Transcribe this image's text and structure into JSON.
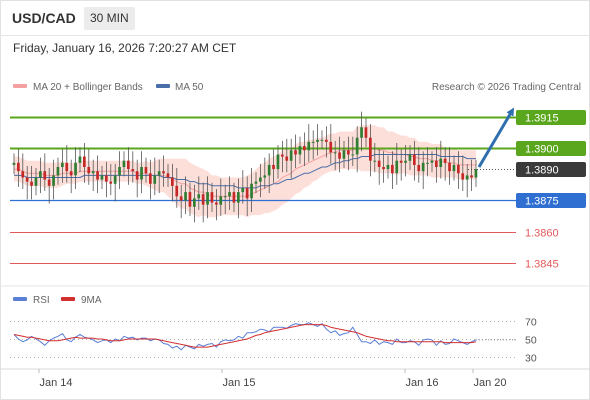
{
  "header": {
    "symbol": "USD/CAD",
    "timeframe": "30 MIN",
    "datetime": "Friday, January 16, 2026 7:20:27 AM CET"
  },
  "legend": {
    "bollinger": "MA 20 + Bollinger Bands",
    "ma50": "MA 50",
    "copyright": "Research © 2026 Trading Central",
    "rsi": "RSI",
    "rsi_ma": "9MA"
  },
  "colors": {
    "resistance": "#5aa61c",
    "support": "#2f6fd1",
    "support_weak": "#e05a5a",
    "current": "#3a3a3a",
    "bollinger_fill": "#fdd9d4",
    "ma20": "#f4a0a0",
    "ma50": "#4a6ea8",
    "candle_up": "#2e7d32",
    "candle_down": "#c62828",
    "arrow": "#2f6fb0",
    "rsi": "#5b7fd6",
    "rsi_ma": "#d32f2f"
  },
  "chart_data": {
    "type": "candlestick",
    "instrument": "USD/CAD",
    "interval": "30 MIN",
    "ylim": [
      1.3836,
      1.3924
    ],
    "levels": [
      {
        "value": 1.3915,
        "label": "1.3915",
        "kind": "resistance"
      },
      {
        "value": 1.39,
        "label": "1.3900",
        "kind": "resistance"
      },
      {
        "value": 1.389,
        "label": "1.3890",
        "kind": "current"
      },
      {
        "value": 1.3875,
        "label": "1.3875",
        "kind": "support"
      },
      {
        "value": 1.386,
        "label": "1.3860",
        "kind": "support_weak"
      },
      {
        "value": 1.3845,
        "label": "1.3845",
        "kind": "support_weak"
      }
    ],
    "forecast_target": 1.3915,
    "x_ticks": [
      "Jan 14",
      "Jan 15",
      "Jan 16",
      "Jan 20"
    ],
    "closes": [
      1.3893,
      1.3889,
      1.3886,
      1.3884,
      1.3882,
      1.3886,
      1.3889,
      1.3885,
      1.3882,
      1.3887,
      1.3891,
      1.3893,
      1.3889,
      1.3887,
      1.3893,
      1.3896,
      1.3891,
      1.3888,
      1.3889,
      1.3885,
      1.3887,
      1.3884,
      1.3883,
      1.3887,
      1.3891,
      1.3894,
      1.389,
      1.3889,
      1.3885,
      1.3891,
      1.3888,
      1.3883,
      1.3887,
      1.3889,
      1.3888,
      1.3886,
      1.3882,
      1.3877,
      1.3875,
      1.3879,
      1.3872,
      1.3876,
      1.3878,
      1.3873,
      1.3879,
      1.3874,
      1.3873,
      1.3877,
      1.3877,
      1.3879,
      1.3874,
      1.3879,
      1.3881,
      1.3876,
      1.3883,
      1.3884,
      1.3886,
      1.3887,
      1.3892,
      1.389,
      1.3897,
      1.3896,
      1.3894,
      1.3899,
      1.3897,
      1.3901,
      1.3899,
      1.3903,
      1.3903,
      1.3904,
      1.3904,
      1.3903,
      1.3898,
      1.3898,
      1.3895,
      1.3899,
      1.3897,
      1.3897,
      1.3905,
      1.391,
      1.3905,
      1.3894,
      1.3894,
      1.3891,
      1.389,
      1.3892,
      1.3888,
      1.3894,
      1.3893,
      1.3894,
      1.3897,
      1.3892,
      1.3889,
      1.3893,
      1.3893,
      1.3894,
      1.3891,
      1.3895,
      1.3893,
      1.3889,
      1.3892,
      1.3888,
      1.3885,
      1.3887,
      1.3886,
      1.389
    ],
    "ma20": [
      1.389,
      1.389,
      1.3889,
      1.3888,
      1.3888,
      1.3888,
      1.3888,
      1.3887,
      1.3887,
      1.3887,
      1.3887,
      1.3888,
      1.3888,
      1.3888,
      1.3888,
      1.3889,
      1.3889,
      1.3889,
      1.3889,
      1.3889,
      1.3889,
      1.3889,
      1.3889,
      1.3889,
      1.3889,
      1.3889,
      1.3889,
      1.3889,
      1.3888,
      1.3888,
      1.3888,
      1.3887,
      1.3887,
      1.3887,
      1.3887,
      1.3886,
      1.3885,
      1.3884,
      1.3883,
      1.3883,
      1.3881,
      1.388,
      1.3879,
      1.3879,
      1.3878,
      1.3877,
      1.3877,
      1.3877,
      1.3877,
      1.3877,
      1.3877,
      1.3877,
      1.3877,
      1.3877,
      1.3878,
      1.3879,
      1.388,
      1.3881,
      1.3882,
      1.3883,
      1.3884,
      1.3886,
      1.3887,
      1.3888,
      1.389,
      1.3891,
      1.3892,
      1.3893,
      1.3894,
      1.3895,
      1.3896,
      1.3897,
      1.3898,
      1.3898,
      1.3899,
      1.3899,
      1.3899,
      1.3899,
      1.39,
      1.39,
      1.39,
      1.39,
      1.39,
      1.3899,
      1.3899,
      1.3898,
      1.3898,
      1.3897,
      1.3897,
      1.3897,
      1.3896,
      1.3896,
      1.3895,
      1.3895,
      1.3895,
      1.3894,
      1.3894,
      1.3894,
      1.3893,
      1.3893,
      1.3893,
      1.3892,
      1.3892,
      1.3892,
      1.3892,
      1.3892
    ],
    "ma50": [
      1.3887,
      1.3887,
      1.3887,
      1.3886,
      1.3886,
      1.3886,
      1.3886,
      1.3886,
      1.3886,
      1.3886,
      1.3886,
      1.3886,
      1.3886,
      1.3886,
      1.3886,
      1.3886,
      1.3887,
      1.3887,
      1.3887,
      1.3887,
      1.3887,
      1.3887,
      1.3887,
      1.3887,
      1.3887,
      1.3887,
      1.3887,
      1.3887,
      1.3887,
      1.3887,
      1.3887,
      1.3887,
      1.3887,
      1.3887,
      1.3886,
      1.3886,
      1.3886,
      1.3885,
      1.3885,
      1.3885,
      1.3884,
      1.3884,
      1.3883,
      1.3883,
      1.3883,
      1.3882,
      1.3882,
      1.3882,
      1.3882,
      1.3882,
      1.3882,
      1.3881,
      1.3881,
      1.3881,
      1.3881,
      1.3881,
      1.3882,
      1.3882,
      1.3882,
      1.3883,
      1.3883,
      1.3884,
      1.3885,
      1.3885,
      1.3886,
      1.3887,
      1.3888,
      1.3888,
      1.3889,
      1.389,
      1.3891,
      1.3891,
      1.3892,
      1.3893,
      1.3893,
      1.3894,
      1.3894,
      1.3895,
      1.3895,
      1.3896,
      1.3896,
      1.3896,
      1.3897,
      1.3897,
      1.3897,
      1.3897,
      1.3897,
      1.3897,
      1.3897,
      1.3897,
      1.3897,
      1.3897,
      1.3897,
      1.3897,
      1.3897,
      1.3897,
      1.3897,
      1.3896,
      1.3896,
      1.3896,
      1.3896,
      1.3896,
      1.3896,
      1.3895,
      1.3895,
      1.3895
    ],
    "band_width": [
      0.0006,
      0.0006,
      0.0006,
      0.0006,
      0.0006,
      0.0006,
      0.0006,
      0.0006,
      0.0006,
      0.0006,
      0.0006,
      0.0006,
      0.0005,
      0.0005,
      0.0005,
      0.0005,
      0.0005,
      0.0005,
      0.0005,
      0.0005,
      0.0005,
      0.0005,
      0.0005,
      0.0005,
      0.0005,
      0.0005,
      0.0005,
      0.0005,
      0.0005,
      0.0005,
      0.0006,
      0.0006,
      0.0007,
      0.0008,
      0.0008,
      0.0009,
      0.001,
      0.0011,
      0.0012,
      0.0012,
      0.0012,
      0.0012,
      0.0012,
      0.0011,
      0.0011,
      0.001,
      0.001,
      0.0009,
      0.0009,
      0.0009,
      0.0009,
      0.0009,
      0.0009,
      0.001,
      0.001,
      0.0011,
      0.0012,
      0.0012,
      0.0013,
      0.0013,
      0.0013,
      0.0013,
      0.0013,
      0.0012,
      0.0012,
      0.0012,
      0.0011,
      0.0011,
      0.001,
      0.001,
      0.0009,
      0.0009,
      0.0009,
      0.0009,
      0.0009,
      0.0009,
      0.0009,
      0.0009,
      0.001,
      0.0011,
      0.0011,
      0.0011,
      0.0011,
      0.0011,
      0.0011,
      0.001,
      0.001,
      0.001,
      0.0009,
      0.0009,
      0.0009,
      0.0009,
      0.0008,
      0.0008,
      0.0008,
      0.0008,
      0.0008,
      0.0008,
      0.0007,
      0.0007,
      0.0007,
      0.0007,
      0.0007,
      0.0007,
      0.0007,
      0.0007
    ],
    "rsi": {
      "ylim": [
        20,
        80
      ],
      "ticks": [
        70,
        50,
        30
      ],
      "rsi_values": [
        55,
        50,
        47,
        49,
        53,
        50,
        47,
        43,
        48,
        51,
        53,
        56,
        49,
        47,
        52,
        55,
        52,
        51,
        49,
        46,
        48,
        49,
        46,
        50,
        48,
        53,
        51,
        52,
        49,
        51,
        51,
        48,
        50,
        49,
        45,
        44,
        40,
        42,
        38,
        43,
        41,
        39,
        44,
        42,
        44,
        45,
        41,
        47,
        49,
        48,
        49,
        53,
        51,
        57,
        57,
        58,
        61,
        60,
        58,
        63,
        63,
        63,
        62,
        65,
        67,
        66,
        66,
        68,
        66,
        64,
        67,
        61,
        57,
        59,
        54,
        56,
        57,
        63,
        55,
        47,
        47,
        45,
        49,
        44,
        47,
        46,
        44,
        50,
        46,
        46,
        48,
        47,
        43,
        49,
        50,
        49,
        43,
        48,
        44,
        45,
        50,
        48,
        46,
        44,
        47,
        49
      ],
      "ma9_values": [
        55,
        54,
        53,
        52,
        52,
        51,
        50,
        49,
        48,
        48,
        48,
        49,
        50,
        51,
        52,
        51,
        51,
        51,
        51,
        50,
        50,
        49,
        48,
        48,
        48,
        49,
        50,
        50,
        50,
        50,
        50,
        50,
        50,
        49,
        48,
        47,
        46,
        45,
        44,
        43,
        42,
        41,
        41,
        41,
        41,
        42,
        43,
        44,
        45,
        46,
        47,
        48,
        49,
        50,
        52,
        54,
        55,
        57,
        58,
        59,
        60,
        61,
        62,
        63,
        64,
        65,
        66,
        66,
        66,
        66,
        66,
        65,
        63,
        62,
        61,
        60,
        59,
        58,
        57,
        55,
        53,
        52,
        51,
        50,
        49,
        48,
        48,
        47,
        47,
        47,
        47,
        47,
        47,
        47,
        47,
        47,
        47,
        47,
        46,
        46,
        46,
        46,
        46,
        46,
        46,
        47
      ]
    }
  }
}
